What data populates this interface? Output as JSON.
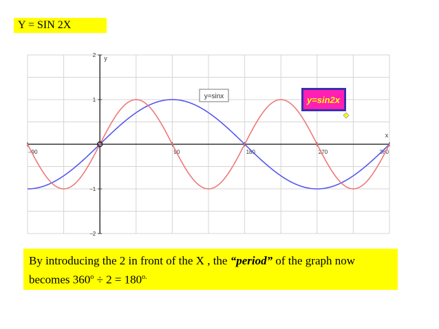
{
  "slide": {
    "title": "Y = SIN 2X",
    "caption": {
      "part1": "By introducing the 2 in front of the X , the ",
      "emphasis": "“period”",
      "part2": " of the graph now becomes 360",
      "sup1": "o",
      "part3": " ÷ 2 = 180",
      "sup2": "o."
    }
  },
  "chart_data": {
    "type": "line",
    "xlabel": "x",
    "ylabel": "y",
    "xlim": [
      -90,
      360
    ],
    "ylim": [
      -2,
      2
    ],
    "x_ticks": [
      -90,
      90,
      180,
      270,
      360
    ],
    "y_ticks": [
      2,
      1,
      -1,
      -2
    ],
    "grid": true,
    "series": [
      {
        "name": "y=sinx",
        "function": "sin(x)",
        "color": "#5555ee",
        "label_bg": "#ffffff",
        "label_color": "#333333"
      },
      {
        "name": "y=sin2x",
        "function": "sin(2x)",
        "color": "#ee7777",
        "label_bg": "#ff1fb4",
        "label_color": "#ffff00"
      }
    ],
    "sample_points_sin2x": {
      "x": [
        -90,
        -45,
        0,
        45,
        90,
        135,
        180,
        225,
        270,
        315,
        360
      ],
      "y": [
        0,
        -1,
        0,
        1,
        0,
        -1,
        0,
        1,
        0,
        -1,
        0
      ]
    },
    "sample_points_sinx": {
      "x": [
        -90,
        0,
        90,
        180,
        270,
        360
      ],
      "y": [
        -1,
        0,
        1,
        0,
        -1,
        0
      ]
    }
  }
}
